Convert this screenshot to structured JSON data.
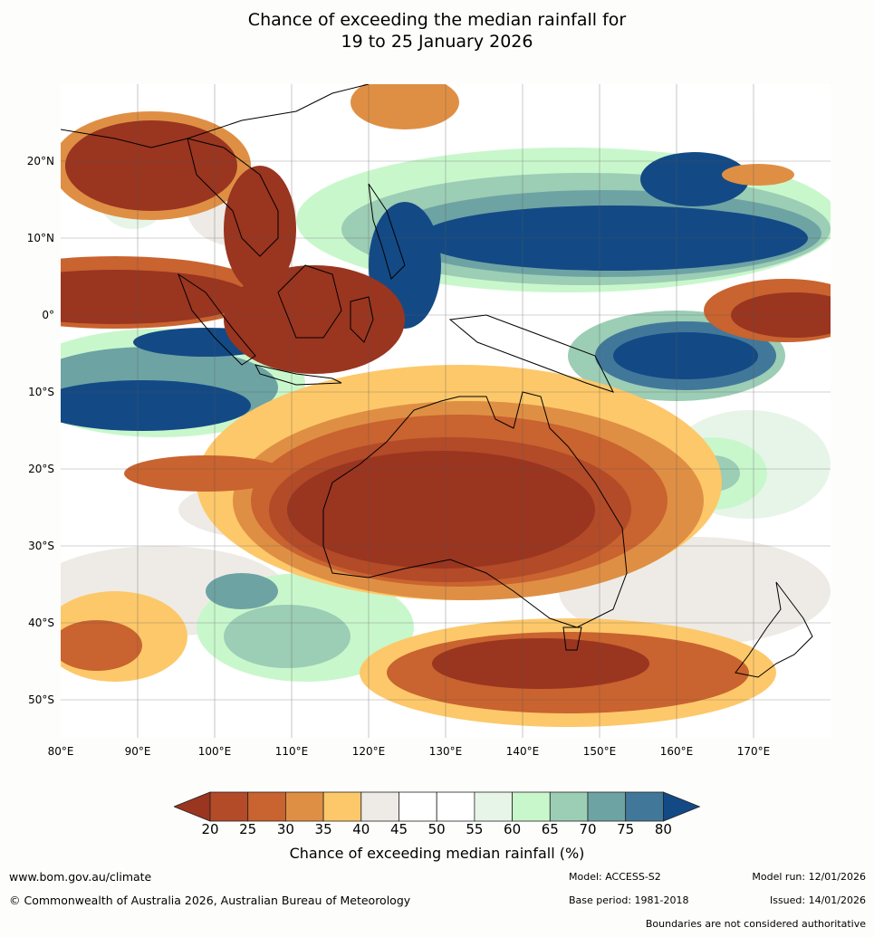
{
  "title": {
    "line1": "Chance of exceeding the median rainfall for",
    "line2": "19 to 25 January 2026"
  },
  "axes": {
    "lat_labels": [
      "20°N",
      "10°N",
      "0°",
      "10°S",
      "20°S",
      "30°S",
      "40°S",
      "50°S"
    ],
    "lon_labels": [
      "80°E",
      "90°E",
      "100°E",
      "110°E",
      "120°E",
      "130°E",
      "140°E",
      "150°E",
      "160°E",
      "170°E"
    ]
  },
  "colorbar": {
    "ticks": [
      "20",
      "25",
      "30",
      "35",
      "40",
      "45",
      "50",
      "55",
      "60",
      "65",
      "70",
      "75",
      "80"
    ],
    "colors": [
      "#9a3520",
      "#b34a28",
      "#c9632f",
      "#df8f44",
      "#fdc86a",
      "#eeebe6",
      "#ffffff",
      "#ffffff",
      "#e7f5e9",
      "#c9f7cc",
      "#9ccdb5",
      "#6ea3a4",
      "#41789a",
      "#134a85"
    ],
    "title": "Chance of exceeding median rainfall (%)"
  },
  "footer": {
    "website": "www.bom.gov.au/climate",
    "copyright": "© Commonwealth of Australia 2026, Australian Bureau of Meteorology",
    "model": "Model: ACCESS-S2",
    "base_period": "Base period: 1981-2018",
    "model_run": "Model run: 12/01/2026",
    "issued": "Issued: 14/01/2026",
    "disclaimer": "Boundaries are not considered authoritative"
  }
}
